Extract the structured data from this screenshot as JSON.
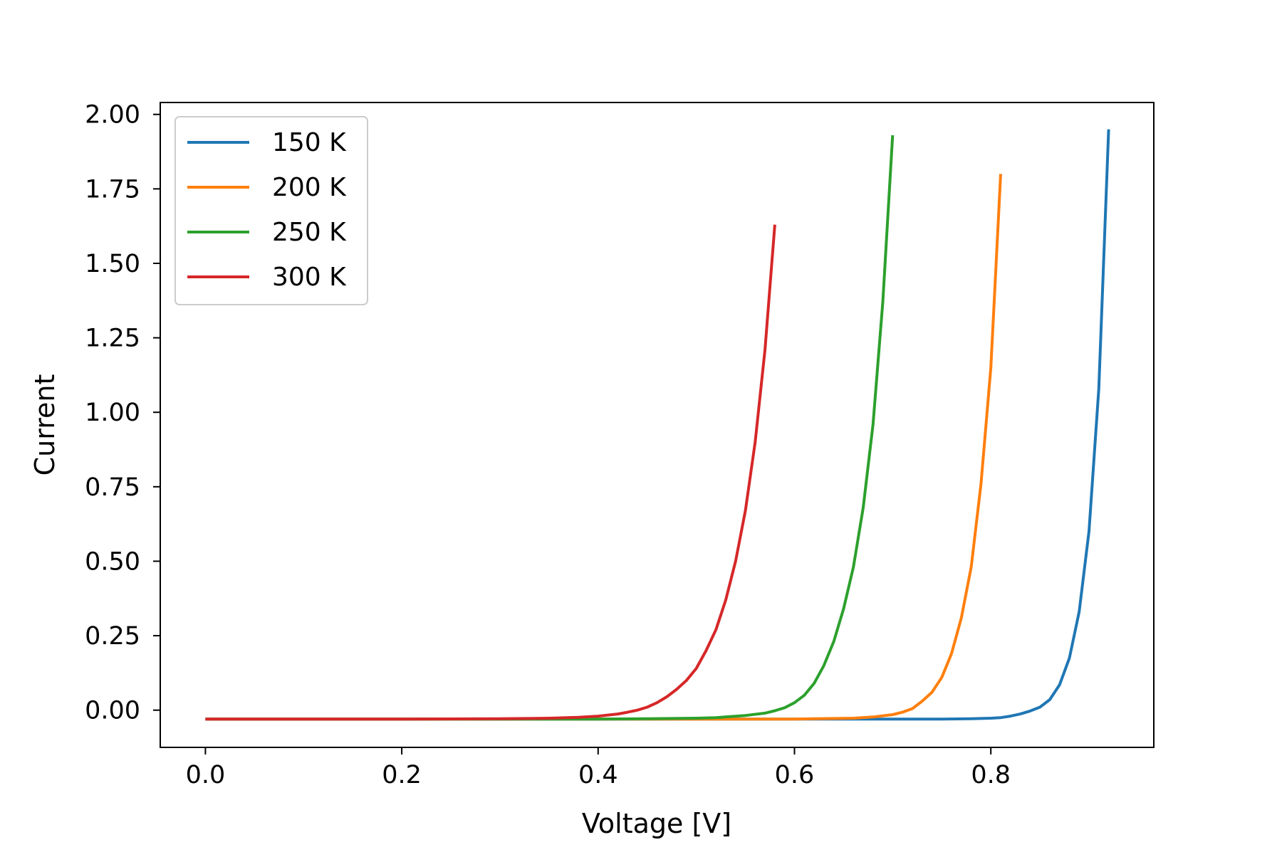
{
  "chart_data": {
    "type": "line",
    "title": "",
    "xlabel": "Voltage [V]",
    "ylabel": "Current",
    "xlim": [
      -0.046,
      0.966
    ],
    "ylim": [
      -0.125,
      2.04
    ],
    "xticks": [
      0.0,
      0.2,
      0.4,
      0.6,
      0.8
    ],
    "xtick_labels": [
      "0.0",
      "0.2",
      "0.4",
      "0.6",
      "0.8"
    ],
    "yticks": [
      0.0,
      0.25,
      0.5,
      0.75,
      1.0,
      1.25,
      1.5,
      1.75,
      2.0
    ],
    "ytick_labels": [
      "0.00",
      "0.25",
      "0.50",
      "0.75",
      "1.00",
      "1.25",
      "1.50",
      "1.75",
      "2.00"
    ],
    "grid": false,
    "legend_position": "top-left",
    "series": [
      {
        "name": "150 K",
        "color": "#1f77b4",
        "x": [
          0.0,
          0.1,
          0.2,
          0.3,
          0.4,
          0.5,
          0.6,
          0.7,
          0.75,
          0.78,
          0.8,
          0.81,
          0.82,
          0.83,
          0.84,
          0.85,
          0.86,
          0.87,
          0.88,
          0.89,
          0.9,
          0.91,
          0.92
        ],
        "y": [
          -0.03,
          -0.03,
          -0.03,
          -0.03,
          -0.03,
          -0.03,
          -0.03,
          -0.03,
          -0.03,
          -0.029,
          -0.027,
          -0.025,
          -0.02,
          -0.013,
          -0.003,
          0.01,
          0.035,
          0.085,
          0.175,
          0.33,
          0.6,
          1.08,
          1.95
        ]
      },
      {
        "name": "200 K",
        "color": "#ff7f0e",
        "x": [
          0.0,
          0.1,
          0.2,
          0.3,
          0.4,
          0.5,
          0.6,
          0.62,
          0.66,
          0.68,
          0.7,
          0.71,
          0.72,
          0.73,
          0.74,
          0.75,
          0.76,
          0.77,
          0.78,
          0.79,
          0.8,
          0.81
        ],
        "y": [
          -0.03,
          -0.03,
          -0.03,
          -0.03,
          -0.03,
          -0.03,
          -0.03,
          -0.029,
          -0.027,
          -0.023,
          -0.015,
          -0.007,
          0.005,
          0.03,
          0.06,
          0.11,
          0.19,
          0.31,
          0.48,
          0.76,
          1.15,
          1.8
        ]
      },
      {
        "name": "250 K",
        "color": "#2ca02c",
        "x": [
          0.0,
          0.1,
          0.2,
          0.3,
          0.4,
          0.45,
          0.5,
          0.52,
          0.55,
          0.57,
          0.58,
          0.59,
          0.6,
          0.61,
          0.62,
          0.63,
          0.64,
          0.65,
          0.66,
          0.67,
          0.68,
          0.69,
          0.7
        ],
        "y": [
          -0.03,
          -0.03,
          -0.03,
          -0.03,
          -0.03,
          -0.029,
          -0.027,
          -0.025,
          -0.018,
          -0.01,
          -0.002,
          0.008,
          0.025,
          0.05,
          0.09,
          0.15,
          0.23,
          0.34,
          0.48,
          0.68,
          0.96,
          1.37,
          1.93
        ]
      },
      {
        "name": "300 K",
        "color": "#d62728",
        "x": [
          0.0,
          0.1,
          0.2,
          0.3,
          0.35,
          0.38,
          0.4,
          0.42,
          0.43,
          0.44,
          0.45,
          0.46,
          0.47,
          0.48,
          0.49,
          0.5,
          0.51,
          0.52,
          0.53,
          0.54,
          0.55,
          0.56,
          0.57,
          0.58
        ],
        "y": [
          -0.03,
          -0.03,
          -0.03,
          -0.029,
          -0.027,
          -0.024,
          -0.02,
          -0.013,
          -0.007,
          0.0,
          0.01,
          0.025,
          0.045,
          0.07,
          0.1,
          0.14,
          0.2,
          0.27,
          0.37,
          0.5,
          0.67,
          0.9,
          1.21,
          1.63
        ]
      }
    ]
  }
}
